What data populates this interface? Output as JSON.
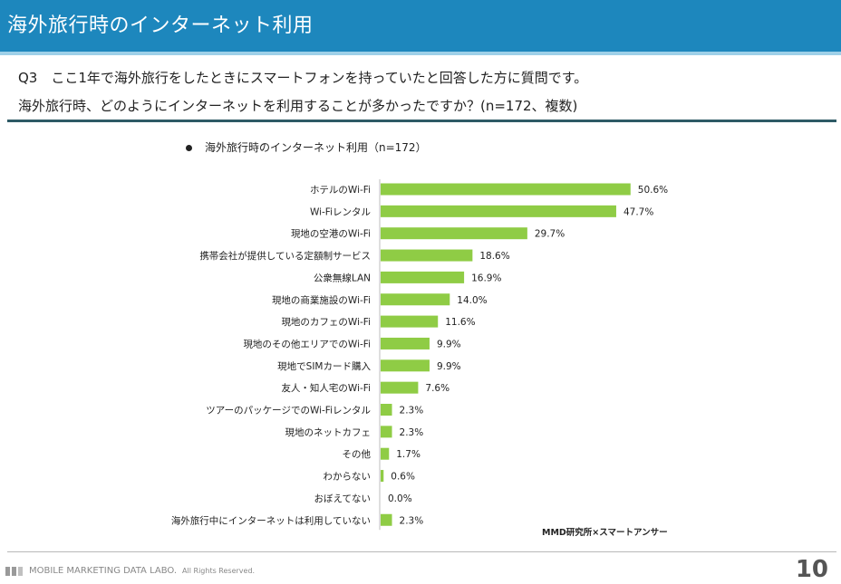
{
  "header": {
    "title": "海外旅行時のインターネット利用"
  },
  "question": {
    "line1": "Q3　ここ1年で海外旅行をしたときにスマートフォンを持っていたと回答した方に質問です。",
    "line2": "海外旅行時、どのようにインターネットを利用することが多かったですか？(n=172、複数)"
  },
  "chart_data": {
    "type": "bar",
    "orientation": "horizontal",
    "legend_label": "海外旅行時のインターネット利用（n=172）",
    "categories": [
      "ホテルのWi-Fi",
      "Wi-Fiレンタル",
      "現地の空港のWi-Fi",
      "携帯会社が提供している定額制サービス",
      "公衆無線LAN",
      "現地の商業施設のWi-Fi",
      "現地のカフェのWi-Fi",
      "現地のその他エリアでのWi-Fi",
      "現地でSIMカード購入",
      "友人・知人宅のWi-Fi",
      "ツアーのパッケージでのWi-Fiレンタル",
      "現地のネットカフェ",
      "その他",
      "わからない",
      "おぼえてない",
      "海外旅行中にインターネットは利用していない"
    ],
    "values": [
      50.6,
      47.7,
      29.7,
      18.6,
      16.9,
      14.0,
      11.6,
      9.9,
      9.9,
      7.6,
      2.3,
      2.3,
      1.7,
      0.6,
      0.0,
      2.3
    ],
    "value_labels": [
      "50.6%",
      "47.7%",
      "29.7%",
      "18.6%",
      "16.9%",
      "14.0%",
      "11.6%",
      "9.9%",
      "9.9%",
      "7.6%",
      "2.3%",
      "2.3%",
      "1.7%",
      "0.6%",
      "0.0%",
      "2.3%"
    ],
    "unit": "%",
    "bar_color": "#8fcc45",
    "source": "MMD研究所×スマートアンサー"
  },
  "footer": {
    "brand": "MOBILE MARKETING DATA LABO.",
    "rights": "All Rights Reserved.",
    "page_number": "10"
  },
  "colors": {
    "header_bg": "#1d87bd",
    "rule": "#2e5a66"
  }
}
